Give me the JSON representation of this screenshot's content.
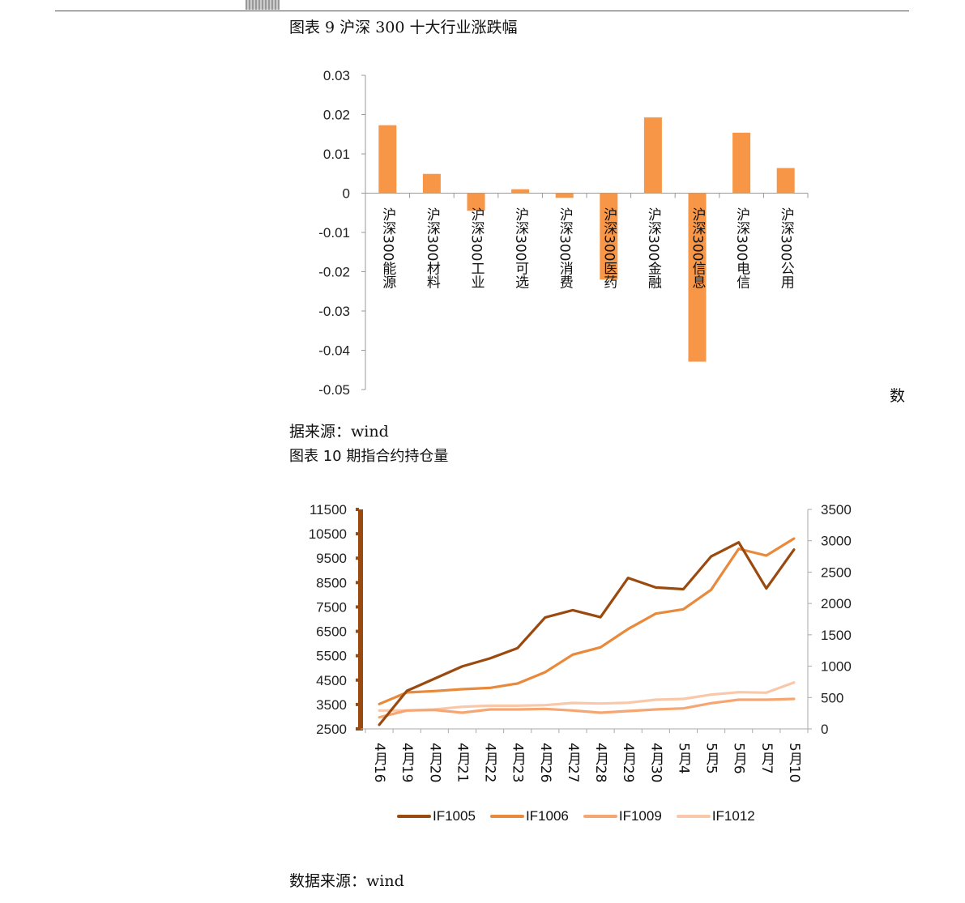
{
  "figure9": {
    "caption": "图表 9 沪深 300 十大行业涨跌幅",
    "source_part1": "数",
    "source_part2": "据来源：wind"
  },
  "figure10": {
    "caption": "图表 10 期指合约持仓量",
    "source": "数据来源：wind"
  },
  "colors": {
    "bar": "#F79646",
    "rule": "#D9141B"
  },
  "chart_data": [
    {
      "type": "bar",
      "title": "沪深300十大行业涨跌幅",
      "categories": [
        "沪深300能源",
        "沪深300材料",
        "沪深300工业",
        "沪深300可选",
        "沪深300消费",
        "沪深300医药",
        "沪深300金融",
        "沪深300信息",
        "沪深300电信",
        "沪深300公用"
      ],
      "values": [
        0.0173,
        0.0049,
        -0.0045,
        0.001,
        -0.0012,
        -0.022,
        0.0193,
        -0.0429,
        0.0154,
        0.0064
      ],
      "ylim": [
        -0.05,
        0.03
      ],
      "yticks": [
        "0.03",
        "0.02",
        "0.01",
        "0",
        "-0.01",
        "-0.02",
        "-0.03",
        "-0.04",
        "-0.05"
      ],
      "ytick_values": [
        0.03,
        0.02,
        0.01,
        0,
        -0.01,
        -0.02,
        -0.03,
        -0.04,
        -0.05
      ],
      "xlabel": "",
      "ylabel": "",
      "grid": false,
      "legend": "none"
    },
    {
      "type": "line",
      "title": "期指合约持仓量",
      "categories": [
        "4月16",
        "4月19",
        "4月20",
        "4月21",
        "4月22",
        "4月23",
        "4月26",
        "4月27",
        "4月28",
        "4月29",
        "4月30",
        "5月4",
        "5月5",
        "5月6",
        "5月7",
        "5月10"
      ],
      "series": [
        {
          "name": "IF1005",
          "axis": "left",
          "color": "#9A4A0F",
          "values": [
            2670,
            4060,
            4560,
            5060,
            5390,
            5810,
            7070,
            7370,
            7080,
            8690,
            8300,
            8230,
            9570,
            10150,
            8260,
            9850
          ]
        },
        {
          "name": "IF1006",
          "axis": "right",
          "color": "#E8893C",
          "values": [
            396,
            581,
            603,
            633,
            654,
            723,
            904,
            1184,
            1300,
            1593,
            1838,
            1907,
            2217,
            2871,
            2764,
            3035
          ]
        },
        {
          "name": "IF1009",
          "axis": "right",
          "color": "#F5A672",
          "values": [
            185,
            293,
            301,
            258,
            310,
            310,
            319,
            293,
            258,
            284,
            310,
            327,
            409,
            465,
            465,
            478
          ]
        },
        {
          "name": "IF1012",
          "axis": "right",
          "color": "#F9C8AA",
          "values": [
            293,
            293,
            310,
            353,
            370,
            370,
            378,
            413,
            404,
            417,
            465,
            478,
            546,
            585,
            577,
            740
          ]
        }
      ],
      "ylim_left": [
        2500,
        11500
      ],
      "yticks_left": [
        "11500",
        "10500",
        "9500",
        "8500",
        "7500",
        "6500",
        "5500",
        "4500",
        "3500",
        "2500"
      ],
      "ytick_values_left": [
        11500,
        10500,
        9500,
        8500,
        7500,
        6500,
        5500,
        4500,
        3500,
        2500
      ],
      "ylim_right": [
        0,
        3500
      ],
      "yticks_right": [
        "3500",
        "3000",
        "2500",
        "2000",
        "1500",
        "1000",
        "500",
        "0"
      ],
      "ytick_values_right": [
        3500,
        3000,
        2500,
        2000,
        1500,
        1000,
        500,
        0
      ],
      "legend": "bottom",
      "grid": false
    }
  ]
}
